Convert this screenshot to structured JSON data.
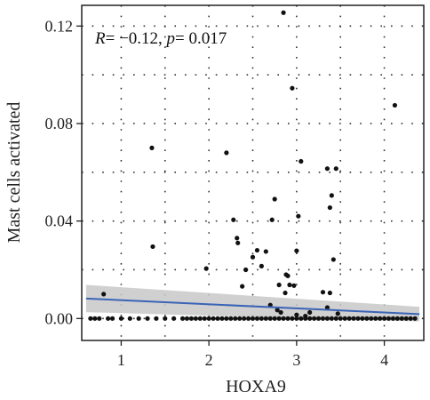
{
  "chart_data": {
    "type": "scatter",
    "title": "",
    "xlabel": "HOXA9",
    "ylabel": "Mast cells activated",
    "xlim": [
      0.55,
      4.45
    ],
    "ylim": [
      -0.009,
      0.1285
    ],
    "x_ticks": [
      1,
      2,
      3,
      4
    ],
    "x_tick_labels": [
      "1",
      "2",
      "3",
      "4"
    ],
    "y_ticks": [
      0.0,
      0.04,
      0.08,
      0.12
    ],
    "y_tick_labels": [
      "0.00",
      "0.04",
      "0.08",
      "0.12"
    ],
    "grid": "dotted",
    "annotation": {
      "r_symbol": "R",
      "r_value": "= −0.12, ",
      "p_symbol": "p",
      "p_value": "= 0.017"
    },
    "regression": {
      "x": [
        0.6,
        4.4
      ],
      "y": [
        0.0082,
        0.0018
      ],
      "ci_upper": [
        0.0138,
        0.0048
      ],
      "ci_lower": [
        0.0026,
        -0.0012
      ]
    },
    "points": {
      "x": [
        0.8,
        1.35,
        1.36,
        1.97,
        2.2,
        2.28,
        2.32,
        2.33,
        2.38,
        2.42,
        2.5,
        2.55,
        2.6,
        2.65,
        2.72,
        2.75,
        2.8,
        2.85,
        2.87,
        2.88,
        2.9,
        2.92,
        2.95,
        2.97,
        3.0,
        3.02,
        3.05,
        3.35,
        3.38,
        3.4,
        3.42,
        3.45,
        3.47,
        3.3,
        3.38,
        3.35,
        4.12,
        2.78,
        2.82,
        2.7,
        3.0,
        3.1,
        3.15,
        0.65,
        0.7,
        0.75,
        0.85,
        0.9,
        1.0,
        1.1,
        1.2,
        1.3,
        1.4,
        1.5,
        1.6,
        1.7,
        1.75,
        1.8,
        1.85,
        1.9,
        1.95,
        2.0,
        2.05,
        2.1,
        2.15,
        2.2,
        2.25,
        2.3,
        2.35,
        2.4,
        2.45,
        2.5,
        2.55,
        2.6,
        2.65,
        2.7,
        2.75,
        2.8,
        2.85,
        2.9,
        2.95,
        3.0,
        3.05,
        3.1,
        3.15,
        3.2,
        3.25,
        3.3,
        3.35,
        3.4,
        3.45,
        3.5,
        3.55,
        3.6,
        3.65,
        3.7,
        3.75,
        3.8,
        3.85,
        3.9,
        3.95,
        4.0,
        4.05,
        4.1,
        4.15,
        4.2,
        4.25,
        4.3,
        4.35
      ],
      "y": [
        0.01,
        0.07,
        0.0295,
        0.0205,
        0.068,
        0.0405,
        0.033,
        0.031,
        0.0132,
        0.02,
        0.0252,
        0.028,
        0.0215,
        0.0275,
        0.0405,
        0.049,
        0.0138,
        0.1255,
        0.0105,
        0.018,
        0.0175,
        0.0138,
        0.0945,
        0.0135,
        0.0278,
        0.042,
        0.0645,
        0.0615,
        0.0455,
        0.0505,
        0.0242,
        0.0615,
        0.002,
        0.0108,
        0.0105,
        0.0045,
        0.0875,
        0.0035,
        0.0025,
        0.0055,
        0.0015,
        0.001,
        0.0025,
        0.0,
        0.0,
        0.0,
        0.0,
        0.0,
        0.0,
        0.0,
        0.0,
        0.0,
        0.0,
        0.0,
        0.0,
        0.0,
        0.0,
        0.0,
        0.0,
        0.0,
        0.0,
        0.0,
        0.0,
        0.0,
        0.0,
        0.0,
        0.0,
        0.0,
        0.0,
        0.0,
        0.0,
        0.0,
        0.0,
        0.0,
        0.0,
        0.0,
        0.0,
        0.0,
        0.0,
        0.0,
        0.0,
        0.0,
        0.0,
        0.0,
        0.0,
        0.0,
        0.0,
        0.0,
        0.0,
        0.0,
        0.0,
        0.0,
        0.0,
        0.0,
        0.0,
        0.0,
        0.0,
        0.0,
        0.0,
        0.0,
        0.0,
        0.0,
        0.0,
        0.0,
        0.0,
        0.0,
        0.0,
        0.0,
        0.0
      ]
    },
    "colors": {
      "points": "#111111",
      "line": "#3b64b6",
      "band": "#c8c8c8",
      "grid": "#333333"
    }
  }
}
